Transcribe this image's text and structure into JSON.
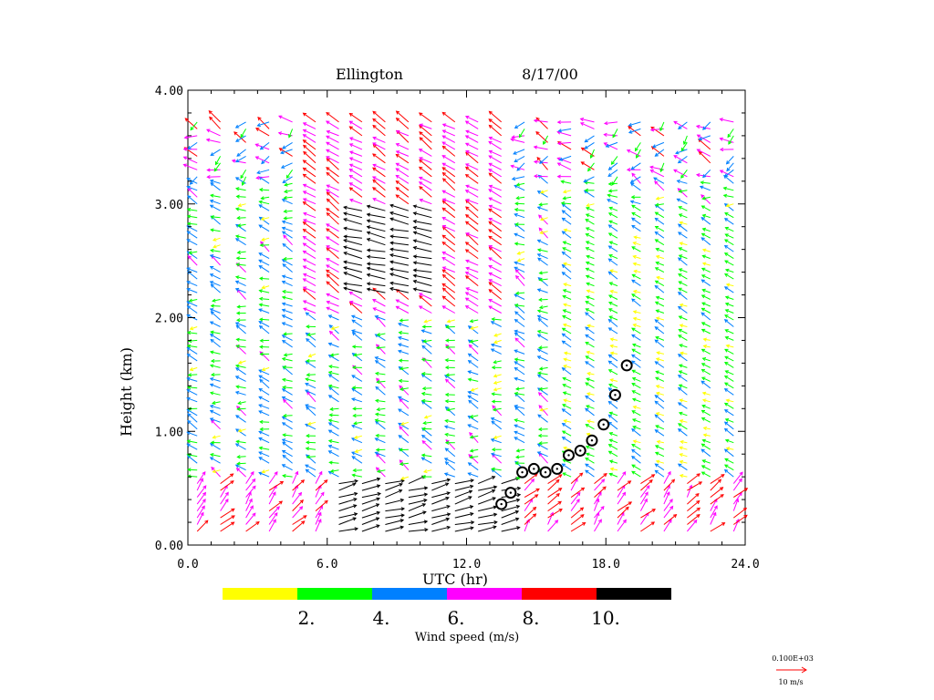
{
  "chart_data": {
    "type": "wind_profiler_barbs",
    "title": "Ellington",
    "date": "8/17/00",
    "xlabel": "UTC (hr)",
    "ylabel": "Height (km)",
    "xlim": [
      0,
      24
    ],
    "ylim": [
      0,
      4
    ],
    "x_ticks": [
      0,
      6,
      12,
      18,
      24
    ],
    "x_tick_labels": [
      "0.0",
      "6.0",
      "12.0",
      "18.0",
      "24.0"
    ],
    "y_ticks": [
      0,
      1,
      2,
      3,
      4
    ],
    "y_tick_labels": [
      "0.00",
      "1.00",
      "2.00",
      "3.00",
      "4.00"
    ],
    "colorbar": {
      "label": "Wind speed (m/s)",
      "bins": [
        {
          "min": 0,
          "max": 2,
          "color": "#ffff00"
        },
        {
          "min": 2,
          "max": 4,
          "color": "#00ff00"
        },
        {
          "min": 4,
          "max": 6,
          "color": "#0080ff"
        },
        {
          "min": 6,
          "max": 8,
          "color": "#ff00ff"
        },
        {
          "min": 8,
          "max": 10,
          "color": "#ff0000"
        },
        {
          "min": 10,
          "max": 12,
          "color": "#000000"
        }
      ],
      "tick_labels": [
        "2.",
        "4.",
        "6.",
        "8.",
        "10."
      ]
    },
    "reference_vector": {
      "scale_label": "0.100E+03",
      "label": "10 m/s",
      "color": "#ff0000"
    },
    "profile_times": [
      0.4,
      1.4,
      2.5,
      3.5,
      4.5,
      5.5,
      6.5,
      7.5,
      8.5,
      9.5,
      10.5,
      11.5,
      12.5,
      13.5,
      14.5,
      15.5,
      16.5,
      17.5,
      18.5,
      19.5,
      20.5,
      21.5,
      22.5,
      23.5
    ],
    "boundary_layer_height": {
      "times": [
        13.5,
        13.9,
        14.4,
        14.9,
        15.4,
        15.9,
        16.4,
        16.9,
        17.4,
        17.9,
        18.4,
        18.9
      ],
      "heights_km": [
        0.36,
        0.46,
        0.64,
        0.67,
        0.64,
        0.67,
        0.79,
        0.83,
        0.92,
        1.06,
        1.32,
        1.58
      ]
    },
    "wind_regions": [
      {
        "description": "low-level southerly jet, black arrows >10 m/s",
        "t": [
          6.5,
          13.5
        ],
        "z_km": [
          0.2,
          0.55
        ],
        "speed_ms": 10.5
      },
      {
        "description": "mid-level easterly jet, black arrows >10 m/s",
        "t": [
          7,
          11
        ],
        "z_km": [
          2.2,
          3.0
        ],
        "speed_ms": 10.5
      }
    ]
  }
}
